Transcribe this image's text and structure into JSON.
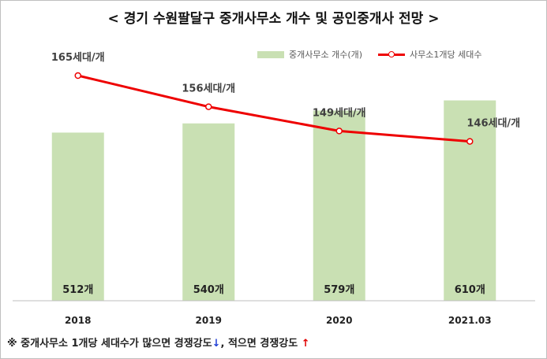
{
  "title": "< 경기 수원팔달구 중개사무소 개수 및 공인중개사 전망 >",
  "legend": {
    "bar_label": "중개사무소 개수(개)",
    "line_label": "사무소1개당 세대수"
  },
  "chart_data": {
    "type": "bar",
    "categories": [
      "2018",
      "2019",
      "2020",
      "2021.03"
    ],
    "series": [
      {
        "name": "중개사무소 개수(개)",
        "type": "bar",
        "values": [
          512,
          540,
          579,
          610
        ],
        "labels": [
          "512개",
          "540개",
          "579개",
          "610개"
        ],
        "color": "#c9e0b3"
      },
      {
        "name": "사무소1개당 세대수",
        "type": "line",
        "values": [
          165,
          156,
          149,
          146
        ],
        "labels": [
          "165세대/개",
          "156세대/개",
          "149세대/개",
          "146세대/개"
        ],
        "color": "#ee0000"
      }
    ],
    "grid": false,
    "legend_position": "top-right"
  },
  "footnote": {
    "prefix": "※ 중개사무소 1개당 세대수가 많으면 경쟁강도",
    "down_arrow": "↓",
    "middle": ", 적으면 경쟁강도 ",
    "up_arrow": "↑"
  }
}
